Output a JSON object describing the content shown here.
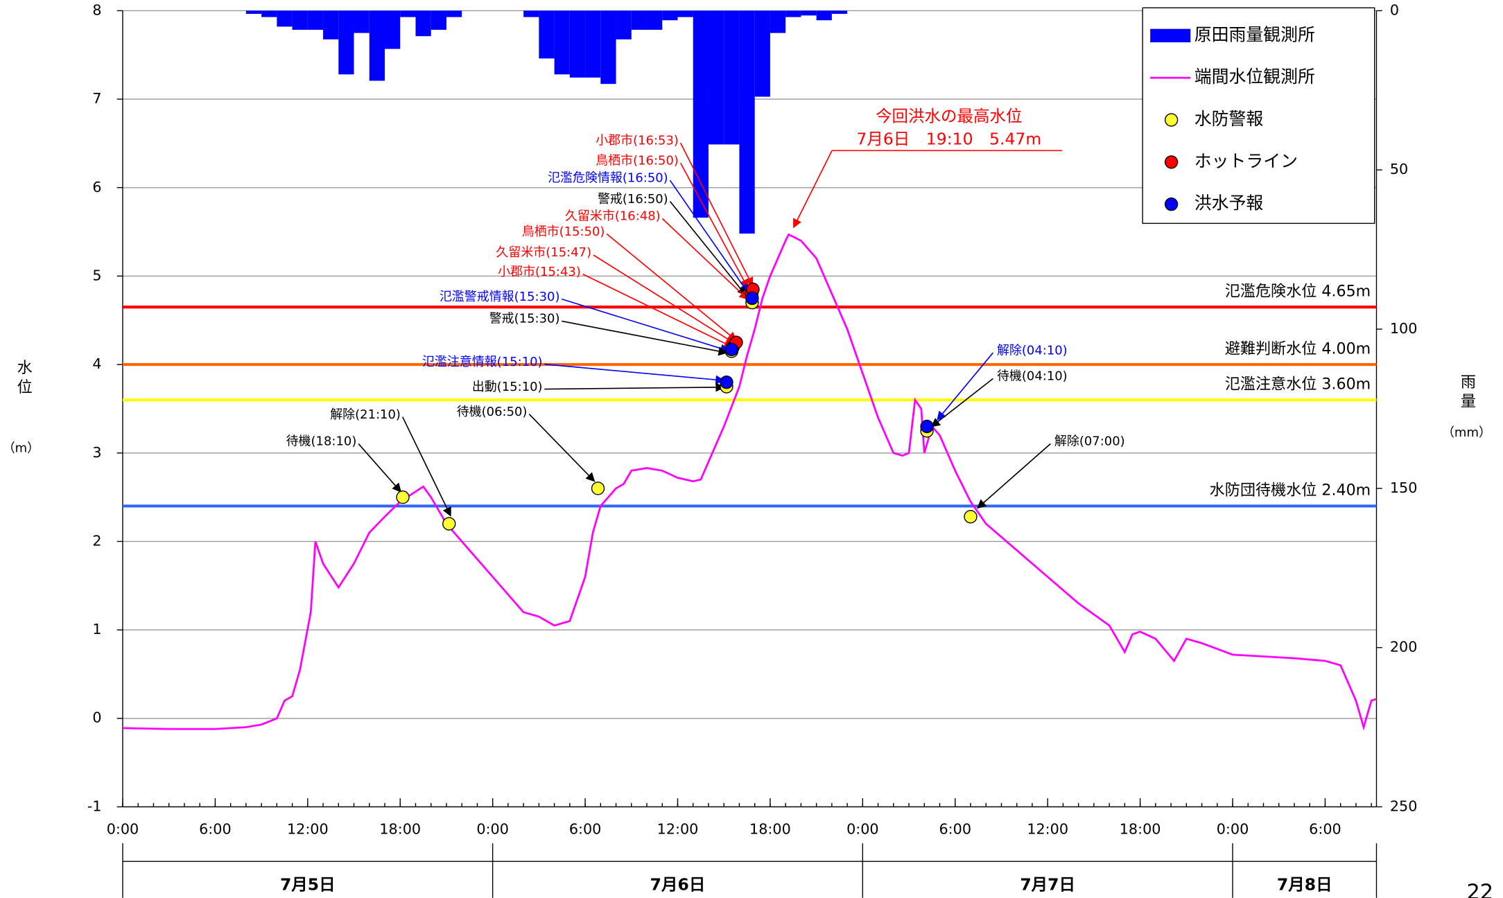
{
  "chart_data": {
    "type": "hydrograph",
    "xlim": [
      0,
      81.33
    ],
    "ylim": [
      -1,
      8
    ],
    "y2lim": [
      250,
      0
    ],
    "xticks": [
      {
        "value": 0,
        "label": "0:00"
      },
      {
        "value": 6,
        "label": "6:00"
      },
      {
        "value": 12,
        "label": "12:00"
      },
      {
        "value": 18,
        "label": "18:00"
      },
      {
        "value": 24,
        "label": "0:00"
      },
      {
        "value": 30,
        "label": "6:00"
      },
      {
        "value": 36,
        "label": "12:00"
      },
      {
        "value": 42,
        "label": "18:00"
      },
      {
        "value": 48,
        "label": "0:00"
      },
      {
        "value": 54,
        "label": "6:00"
      },
      {
        "value": 60,
        "label": "12:00"
      },
      {
        "value": 66,
        "label": "18:00"
      },
      {
        "value": 72,
        "label": "0:00"
      },
      {
        "value": 78,
        "label": "6:00"
      }
    ],
    "yticks": [
      -1,
      0,
      1,
      2,
      3,
      4,
      5,
      6,
      7,
      8
    ],
    "y2ticks": [
      0,
      50,
      100,
      150,
      200,
      250
    ],
    "ylabel": "水位",
    "yunit": "（m）",
    "y2label": "雨量",
    "y2unit": "（mm）",
    "day_labels": [
      "7月5日",
      "7月6日",
      "7月7日",
      "7月8日"
    ],
    "grid": true,
    "series": [
      {
        "name": "原田雨量観測所",
        "type": "bar",
        "axis": "y2",
        "color": "#0000ff",
        "x": [
          8,
          9,
          10,
          11,
          12,
          13,
          14,
          15,
          16,
          17,
          18,
          19,
          20,
          21,
          26,
          27,
          28,
          29,
          30,
          31,
          32,
          33,
          34,
          35,
          36,
          37,
          38,
          39,
          40,
          41,
          42,
          43,
          44,
          45,
          46
        ],
        "values": [
          1,
          2,
          5,
          6,
          6,
          9,
          20,
          7,
          22,
          12,
          2,
          8,
          6,
          2,
          2,
          15,
          20,
          21,
          21,
          23,
          9,
          6,
          6,
          3,
          2,
          65,
          42,
          42,
          70,
          27,
          7,
          2,
          1.5,
          3,
          1
        ]
      },
      {
        "name": "端間水位観測所",
        "type": "line",
        "color": "#ff00ff",
        "x": [
          0,
          3,
          6,
          8,
          9,
          10,
          10.5,
          11,
          11.5,
          12.2,
          12.5,
          13,
          14,
          15,
          16,
          17,
          18,
          19.5,
          20,
          21,
          22,
          23,
          24,
          25,
          26,
          27,
          28,
          29,
          30,
          30.5,
          31,
          32,
          32.5,
          33,
          34,
          35,
          36,
          37,
          37.5,
          38,
          39,
          40,
          40.5,
          41,
          41.5,
          42,
          43,
          43.2,
          44,
          45,
          46,
          47,
          48,
          49,
          50,
          50.6,
          51,
          51.4,
          51.8,
          52,
          52.5,
          53,
          54,
          55,
          56,
          58,
          60,
          62,
          64,
          65,
          65.5,
          66,
          67,
          68.2,
          69,
          70,
          72,
          74,
          76,
          78,
          79,
          80,
          80.5,
          81,
          81.33
        ],
        "values": [
          -0.11,
          -0.12,
          -0.12,
          -0.1,
          -0.07,
          0,
          0.2,
          0.25,
          0.55,
          1.2,
          2,
          1.75,
          1.48,
          1.75,
          2.1,
          2.28,
          2.45,
          2.62,
          2.5,
          2.2,
          2,
          1.8,
          1.6,
          1.4,
          1.2,
          1.15,
          1.05,
          1.1,
          1.6,
          2.1,
          2.4,
          2.6,
          2.65,
          2.8,
          2.83,
          2.8,
          2.72,
          2.68,
          2.7,
          2.9,
          3.3,
          3.75,
          4.1,
          4.4,
          4.75,
          5,
          5.4,
          5.47,
          5.4,
          5.2,
          4.8,
          4.4,
          3.9,
          3.4,
          3,
          2.97,
          3,
          3.6,
          3.5,
          3,
          3.3,
          3.2,
          2.8,
          2.45,
          2.2,
          1.9,
          1.6,
          1.3,
          1.05,
          0.75,
          0.95,
          0.98,
          0.9,
          0.65,
          0.9,
          0.85,
          0.72,
          0.7,
          0.68,
          0.65,
          0.6,
          0.2,
          -0.1,
          0.2,
          0.22
        ]
      },
      {
        "name": "水防警報",
        "type": "scatter",
        "color": "#ffff33",
        "x": [
          18.17,
          21.17,
          30.83,
          39.17,
          39.5,
          40.83,
          52.17,
          55
        ],
        "values": [
          2.5,
          2.2,
          2.6,
          3.75,
          4.15,
          4.7,
          3.25,
          2.28
        ]
      },
      {
        "name": "ホットライン",
        "type": "scatter",
        "color": "#ff0000",
        "x": [
          39.6,
          39.8,
          40.8,
          40.88
        ],
        "values": [
          4.2,
          4.25,
          4.8,
          4.85
        ]
      },
      {
        "name": "洪水予報",
        "type": "scatter",
        "color": "#0000ff",
        "x": [
          39.17,
          39.5,
          40.83,
          52.17
        ],
        "values": [
          3.8,
          4.17,
          4.75,
          3.3
        ]
      }
    ],
    "reference_lines": [
      {
        "value": 4.65,
        "label": "氾濫危険水位 4.65m",
        "color": "#ff0000"
      },
      {
        "value": 4.0,
        "label": "避難判断水位 4.00m",
        "color": "#ff6600"
      },
      {
        "value": 3.6,
        "label": "氾濫注意水位 3.60m",
        "color": "#ffff00"
      },
      {
        "value": 2.4,
        "label": "水防団待機水位 2.40m",
        "color": "#3366ff"
      }
    ],
    "annotations": [
      {
        "text": "小郡市(16:53)",
        "color": "#ff0000"
      },
      {
        "text": "鳥栖市(16:50)",
        "color": "#ff0000"
      },
      {
        "text": "氾濫危険情報(16:50)",
        "color": "#0000ff"
      },
      {
        "text": "警戒(16:50)",
        "color": "#000000"
      },
      {
        "text": "久留米市(16:48)",
        "color": "#ff0000"
      },
      {
        "text": "鳥栖市(15:50)",
        "color": "#ff0000"
      },
      {
        "text": "久留米市(15:47)",
        "color": "#ff0000"
      },
      {
        "text": "小郡市(15:43)",
        "color": "#ff0000"
      },
      {
        "text": "氾濫警戒情報(15:30)",
        "color": "#0000ff"
      },
      {
        "text": "警戒(15:30)",
        "color": "#000000"
      },
      {
        "text": "氾濫注意情報(15:10)",
        "color": "#0000ff"
      },
      {
        "text": "出動(15:10)",
        "color": "#000000"
      },
      {
        "text": "待機(06:50)",
        "color": "#000000"
      },
      {
        "text": "解除(21:10)",
        "color": "#000000"
      },
      {
        "text": "待機(18:10)",
        "color": "#000000"
      },
      {
        "text": "解除(04:10)",
        "color": "#0000ff"
      },
      {
        "text": "待機(04:10)",
        "color": "#000000"
      },
      {
        "text": "解除(07:00)",
        "color": "#000000"
      }
    ],
    "peak_note": [
      "今回洪水の最高水位",
      "7月6日　19:10　5.47m"
    ],
    "page_number": "22"
  }
}
